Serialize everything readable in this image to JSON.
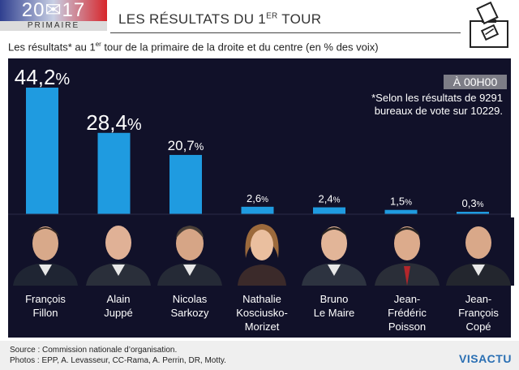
{
  "header": {
    "logo_year": "20✉17",
    "logo_sub": "PRIMAIRE",
    "title_main": "LES RÉSULTATS DU 1",
    "title_sup": "ER",
    "title_end": " TOUR"
  },
  "subtitle": {
    "pre": "Les résultats* au 1",
    "sup": "er",
    "post": " tour de la primaire de la droite et du centre (en % des voix)"
  },
  "badge": "À 00H00",
  "note": "*Selon les résultats de 9291 bureaux de vote sur 10229.",
  "footer": {
    "source": "Source : Commission nationale d’organisation.",
    "photos": "Photos : EPP, A. Levasseur, CC-Rama, A. Perrin, DR, Motty.",
    "brand": "VISACTU"
  },
  "candidates": [
    {
      "line1": "François",
      "line2": "Fillon",
      "line3": ""
    },
    {
      "line1": "Alain",
      "line2": "Juppé",
      "line3": ""
    },
    {
      "line1": "Nicolas",
      "line2": "Sarkozy",
      "line3": ""
    },
    {
      "line1": "Nathalie",
      "line2": "Kosciusko-",
      "line3": "Morizet"
    },
    {
      "line1": "Bruno",
      "line2": "Le Maire",
      "line3": ""
    },
    {
      "line1": "Jean-",
      "line2": "Frédéric",
      "line3": "Poisson"
    },
    {
      "line1": "Jean-",
      "line2": "François",
      "line3": "Copé"
    }
  ],
  "chart_data": {
    "type": "bar",
    "categories": [
      "François Fillon",
      "Alain Juppé",
      "Nicolas Sarkozy",
      "Nathalie Kosciusko-Morizet",
      "Bruno Le Maire",
      "Jean-Frédéric Poisson",
      "Jean-François Copé"
    ],
    "values": [
      44.2,
      28.4,
      20.7,
      2.6,
      2.4,
      1.5,
      0.3
    ],
    "labels": [
      "44,2",
      "28,4",
      "20,7",
      "2,6",
      "2,4",
      "1,5",
      "0,3"
    ],
    "unit": "%",
    "ylim": [
      0,
      44.2
    ],
    "bar_color": "#1f9be0",
    "background": "#111129"
  },
  "colors": {
    "brand_blue": "#2a6fb3",
    "flag_blue": "#2f3f8f",
    "flag_red": "#d7262b"
  }
}
